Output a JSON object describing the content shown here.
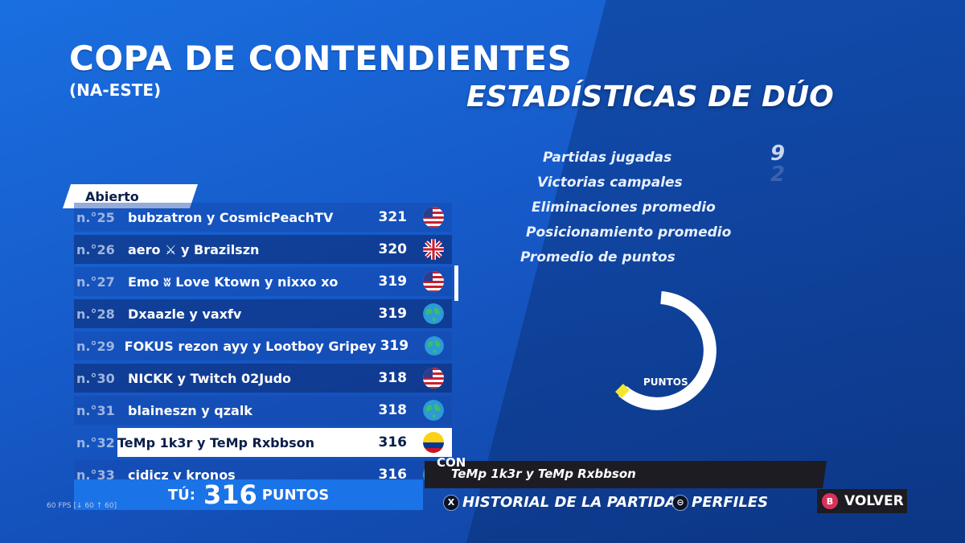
{
  "header": {
    "title": "COPA DE CONTENDIENTES",
    "region": "(NA-ESTE)",
    "stats_title": "ESTADÍSTICAS DE DÚO"
  },
  "stats": [
    {
      "label": "Partidas jugadas",
      "value": "9"
    },
    {
      "label": "Victorias campales",
      "value": "2"
    },
    {
      "label": "Eliminaciones promedio",
      "value": ""
    },
    {
      "label": "Posicionamiento promedio",
      "value": ""
    },
    {
      "label": "Promedio de puntos",
      "value": ""
    }
  ],
  "leaderboard": {
    "tab": "Abierto",
    "rows": [
      {
        "rank": "n.°25",
        "name": "bubzatron y CosmicPeachTV",
        "score": "321",
        "flag": "us-flag"
      },
      {
        "rank": "n.°26",
        "name": "aero ⚔ y Brazilszn",
        "score": "320",
        "flag": "uk-flag"
      },
      {
        "rank": "n.°27",
        "name": "Emo ʬ Love Ktown y nixxo xo",
        "score": "319",
        "flag": "us-flag"
      },
      {
        "rank": "n.°28",
        "name": "Dxaazle y vaxfv",
        "score": "319",
        "flag": "globe"
      },
      {
        "rank": "n.°29",
        "name": "FOKUS rezon ayy y Lootboy Gripey",
        "score": "319",
        "flag": "globe"
      },
      {
        "rank": "n.°30",
        "name": "NICKK y Twitch 02Judo",
        "score": "318",
        "flag": "us-flag"
      },
      {
        "rank": "n.°31",
        "name": "blaineszn y qzalk",
        "score": "318",
        "flag": "globe"
      },
      {
        "rank": "n.°32",
        "name": "TeMp 1k3r y TeMp Rxbbson",
        "score": "316",
        "flag": "colombia-flag"
      },
      {
        "rank": "n.°33",
        "name": "cidicz y kronos",
        "score": "316",
        "flag": "globe"
      }
    ],
    "selected_index": 7
  },
  "you": {
    "label": "TÚ:",
    "value": "316",
    "unit": "PUNTOS"
  },
  "fps": "60 FPS [↓ 60 ↑ 60]",
  "donut": {
    "label": "PUNTOS"
  },
  "partner": {
    "prefix": "CON",
    "name": "TeMp 1k3r y TeMp Rxbbson"
  },
  "buttons": {
    "history": {
      "glyph": "X",
      "label": "HISTORIAL DE LA PARTIDA"
    },
    "profiles": {
      "glyph": "⊝",
      "label": "PERFILES"
    },
    "back": {
      "glyph": "B",
      "label": "VOLVER"
    }
  }
}
